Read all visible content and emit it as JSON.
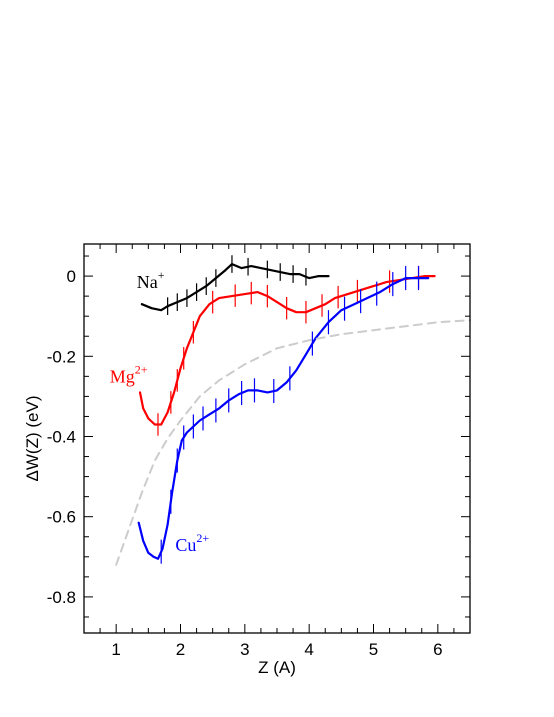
{
  "chart_data": {
    "type": "line",
    "title": "",
    "xlabel": "Z (A)",
    "ylabel": "ΔW(Z) (eV)",
    "xlim": [
      0.5,
      6.5
    ],
    "ylim": [
      -0.89,
      0.08
    ],
    "x_ticks": [
      1,
      2,
      3,
      4,
      5,
      6
    ],
    "x_tick_labels": [
      "1",
      "2",
      "3",
      "4",
      "5",
      "6"
    ],
    "y_ticks": [
      0,
      -0.2,
      -0.4,
      -0.6,
      -0.8
    ],
    "y_tick_labels": [
      "0",
      "-0.2",
      "-0.4",
      "-0.6",
      "-0.8"
    ],
    "grid": false,
    "legend": "labels placed next to curves",
    "series": [
      {
        "name": "Na+",
        "label_base": "Na",
        "label_sup": "+",
        "label_at": [
          1.32,
          -0.03
        ],
        "color": "#000000",
        "x": [
          1.4,
          1.55,
          1.7,
          1.8,
          1.95,
          2.1,
          2.25,
          2.4,
          2.55,
          2.7,
          2.8,
          2.95,
          3.1,
          3.25,
          3.4,
          3.55,
          3.7,
          3.85,
          4.0,
          4.15,
          4.3
        ],
        "y": [
          -0.07,
          -0.08,
          -0.085,
          -0.075,
          -0.065,
          -0.055,
          -0.04,
          -0.025,
          -0.005,
          0.015,
          0.03,
          0.02,
          0.025,
          0.02,
          0.015,
          0.01,
          0.005,
          0.005,
          -0.005,
          0.0,
          0.0
        ],
        "err_x": [
          1.8,
          1.95,
          2.1,
          2.25,
          2.4,
          2.55,
          2.8,
          3.05,
          3.35,
          3.55,
          3.75,
          3.95
        ],
        "err": 0.022
      },
      {
        "name": "Mg2+",
        "label_base": "Mg",
        "label_sup": "2+",
        "label_at": [
          0.9,
          -0.265
        ],
        "color": "#ff0000",
        "x": [
          1.37,
          1.42,
          1.5,
          1.6,
          1.7,
          1.8,
          1.9,
          2.0,
          2.1,
          2.2,
          2.3,
          2.45,
          2.6,
          2.8,
          3.0,
          3.2,
          3.35,
          3.5,
          3.65,
          3.8,
          3.95,
          4.1,
          4.25,
          4.4,
          4.6,
          4.8,
          5.0,
          5.2,
          5.4,
          5.6,
          5.8,
          5.95
        ],
        "y": [
          -0.29,
          -0.33,
          -0.355,
          -0.37,
          -0.37,
          -0.34,
          -0.29,
          -0.23,
          -0.18,
          -0.14,
          -0.1,
          -0.07,
          -0.055,
          -0.05,
          -0.045,
          -0.04,
          -0.05,
          -0.065,
          -0.08,
          -0.09,
          -0.09,
          -0.08,
          -0.07,
          -0.055,
          -0.045,
          -0.035,
          -0.025,
          -0.015,
          -0.01,
          -0.005,
          0.0,
          0.0
        ],
        "err_x": [
          1.65,
          1.85,
          1.95,
          2.05,
          2.2,
          2.5,
          2.85,
          3.1,
          3.35,
          3.65,
          3.95,
          4.2,
          4.45,
          4.75,
          5.25,
          5.7
        ],
        "err": 0.028
      },
      {
        "name": "Cu2+",
        "label_base": "Cu",
        "label_sup": "2+",
        "label_at": [
          1.92,
          -0.685
        ],
        "color": "#0000ff",
        "x": [
          1.35,
          1.42,
          1.5,
          1.58,
          1.65,
          1.72,
          1.8,
          1.87,
          1.95,
          2.02,
          2.1,
          2.2,
          2.3,
          2.45,
          2.6,
          2.75,
          2.9,
          3.05,
          3.2,
          3.35,
          3.5,
          3.65,
          3.8,
          3.95,
          4.1,
          4.3,
          4.5,
          4.7,
          4.9,
          5.1,
          5.3,
          5.5,
          5.7,
          5.85
        ],
        "y": [
          -0.615,
          -0.66,
          -0.69,
          -0.7,
          -0.705,
          -0.68,
          -0.62,
          -0.54,
          -0.46,
          -0.41,
          -0.39,
          -0.375,
          -0.36,
          -0.345,
          -0.33,
          -0.31,
          -0.295,
          -0.285,
          -0.285,
          -0.29,
          -0.285,
          -0.265,
          -0.235,
          -0.195,
          -0.155,
          -0.115,
          -0.085,
          -0.07,
          -0.055,
          -0.04,
          -0.02,
          -0.005,
          -0.005,
          -0.005
        ],
        "err_x": [
          1.7,
          1.85,
          1.95,
          2.05,
          2.2,
          2.35,
          2.55,
          2.75,
          2.95,
          3.15,
          3.45,
          3.7,
          4.05,
          4.3,
          4.55,
          4.8,
          5.05,
          5.3,
          5.5,
          5.7
        ],
        "err": 0.03
      },
      {
        "name": "",
        "color": "#cccccc",
        "dashed": true,
        "x": [
          1.0,
          1.2,
          1.4,
          1.6,
          1.8,
          2.0,
          2.3,
          2.6,
          3.0,
          3.5,
          4.0,
          4.5,
          5.0,
          5.5,
          6.0,
          6.5
        ],
        "y": [
          -0.72,
          -0.63,
          -0.54,
          -0.46,
          -0.405,
          -0.36,
          -0.3,
          -0.26,
          -0.22,
          -0.18,
          -0.16,
          -0.145,
          -0.135,
          -0.125,
          -0.115,
          -0.11
        ]
      }
    ]
  }
}
